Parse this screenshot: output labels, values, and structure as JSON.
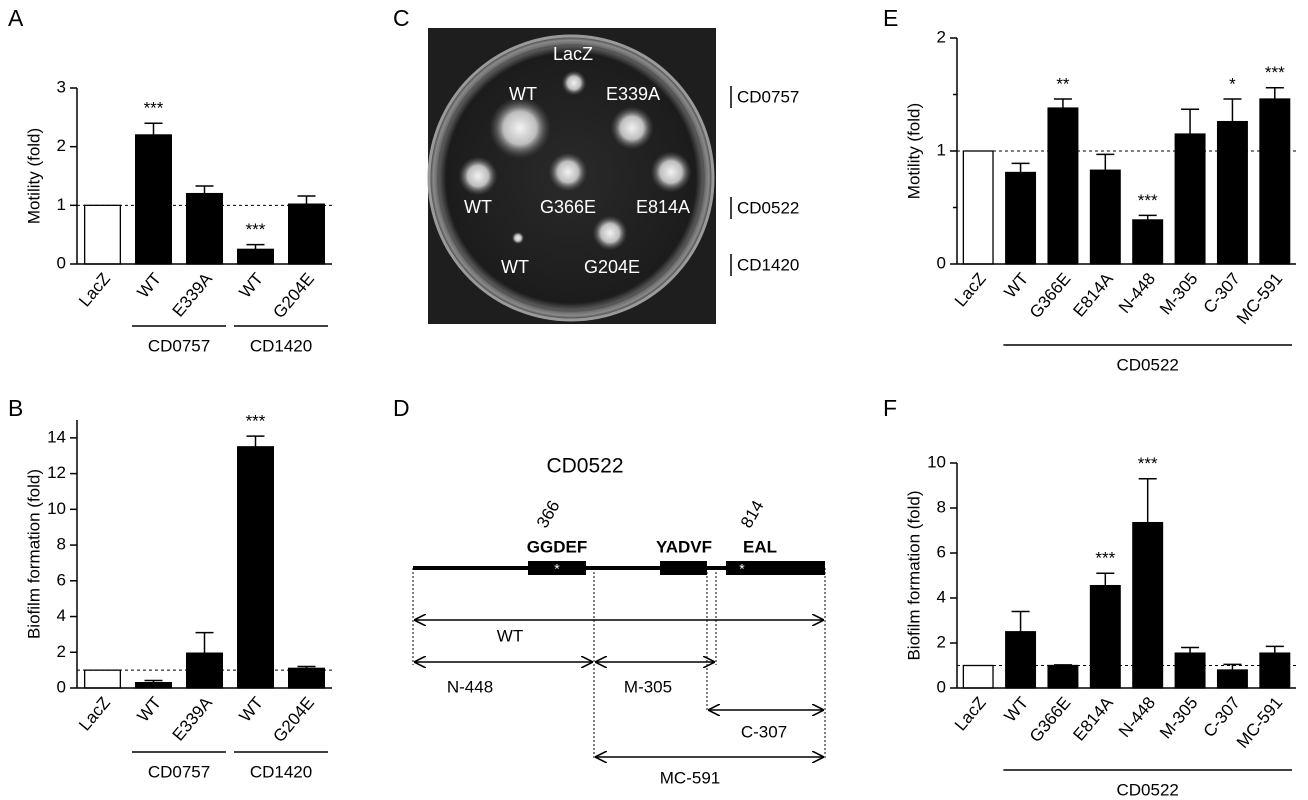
{
  "panel_labels": [
    "A",
    "B",
    "C",
    "D",
    "E",
    "F"
  ],
  "chart_data": [
    {
      "type": "bar",
      "ylabel": "Motility (fold)",
      "categories": [
        "LacZ",
        "WT",
        "E339A",
        "WT",
        "G204E"
      ],
      "values": [
        1,
        2.2,
        1.2,
        0.25,
        1.02
      ],
      "errors": [
        null,
        0.2,
        0.13,
        0.08,
        0.14
      ],
      "colors": [
        "#ffffff",
        "#000000",
        "#000000",
        "#000000",
        "#000000"
      ],
      "significance": [
        null,
        "***",
        null,
        "***",
        null
      ],
      "groups": [
        null,
        "CD0757",
        "CD0757",
        "CD1420",
        "CD1420"
      ],
      "ylim": [
        0,
        3
      ],
      "yticks": [
        0,
        1,
        2,
        3
      ],
      "ref_line": 1
    },
    {
      "type": "bar",
      "ylabel": "Biofilm formation (fold)",
      "categories": [
        "LacZ",
        "WT",
        "E339A",
        "WT",
        "G204E"
      ],
      "values": [
        1,
        0.3,
        1.95,
        13.5,
        1.1
      ],
      "errors": [
        null,
        0.12,
        1.15,
        0.6,
        0.1
      ],
      "colors": [
        "#ffffff",
        "#000000",
        "#000000",
        "#000000",
        "#000000"
      ],
      "significance": [
        null,
        null,
        null,
        "***",
        null
      ],
      "groups": [
        null,
        "CD0757",
        "CD0757",
        "CD1420",
        "CD1420"
      ],
      "ylim": [
        0,
        15
      ],
      "yticks": [
        0,
        2,
        4,
        6,
        8,
        10,
        12,
        14
      ],
      "ref_line": 1
    },
    {
      "type": "bar",
      "ylabel": "Motility (fold)",
      "categories": [
        "LacZ",
        "WT",
        "G366E",
        "E814A",
        "N-448",
        "M-305",
        "C-307",
        "MC-591"
      ],
      "values": [
        1,
        0.81,
        1.38,
        0.83,
        0.39,
        1.15,
        1.26,
        1.46
      ],
      "errors": [
        null,
        0.08,
        0.08,
        0.14,
        0.04,
        0.22,
        0.2,
        0.1
      ],
      "colors": [
        "#ffffff",
        "#000000",
        "#000000",
        "#000000",
        "#000000",
        "#000000",
        "#000000",
        "#000000"
      ],
      "significance": [
        null,
        null,
        "**",
        null,
        "***",
        null,
        "*",
        "***"
      ],
      "groups": [
        null,
        "CD0522",
        "CD0522",
        "CD0522",
        "CD0522",
        "CD0522",
        "CD0522",
        "CD0522"
      ],
      "ylim": [
        0,
        2
      ],
      "yticks": [
        0,
        1,
        2
      ],
      "yminorticks": [
        0.5,
        1.5
      ],
      "ref_line": 1
    },
    {
      "type": "bar",
      "ylabel": "Biofilm formation (fold)",
      "categories": [
        "LacZ",
        "WT",
        "G366E",
        "E814A",
        "N-448",
        "M-305",
        "C-307",
        "MC-591"
      ],
      "values": [
        1,
        2.5,
        1.0,
        4.55,
        7.35,
        1.55,
        0.8,
        1.55
      ],
      "errors": [
        null,
        0.9,
        0.03,
        0.55,
        1.95,
        0.25,
        0.25,
        0.3
      ],
      "colors": [
        "#ffffff",
        "#000000",
        "#000000",
        "#000000",
        "#000000",
        "#000000",
        "#000000",
        "#000000"
      ],
      "significance": [
        null,
        null,
        null,
        "***",
        "***",
        null,
        null,
        null
      ],
      "groups": [
        null,
        "CD0522",
        "CD0522",
        "CD0522",
        "CD0522",
        "CD0522",
        "CD0522",
        "CD0522"
      ],
      "ylim": [
        0,
        10
      ],
      "yticks": [
        0,
        2,
        4,
        6,
        8,
        10
      ],
      "ref_line": 1
    }
  ],
  "plate": {
    "colonies": [
      "LacZ",
      "WT",
      "E339A",
      "WT",
      "G366E",
      "E814A",
      "WT",
      "G204E"
    ],
    "strains": [
      "CD0757",
      "CD0522",
      "CD1420"
    ]
  },
  "diagram": {
    "title": "CD0522",
    "motifs": [
      "GGDEF",
      "YADVF",
      "EAL"
    ],
    "positions": [
      366,
      814
    ],
    "asterisks": [
      "*",
      "*"
    ],
    "constructs": [
      "WT",
      "N-448",
      "M-305",
      "C-307",
      "MC-591"
    ]
  }
}
